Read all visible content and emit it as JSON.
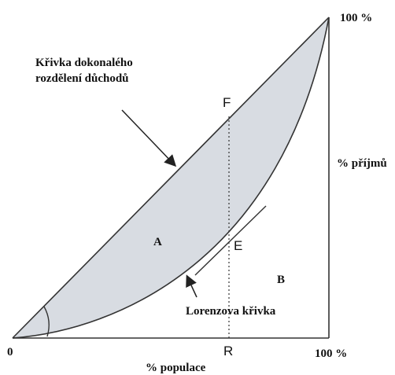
{
  "labels": {
    "top_right": "100 %",
    "diagonal": [
      "Křivka dokonalého",
      "rozdělení důchodů"
    ],
    "point_f": "F",
    "y_axis": "% příjmů",
    "area_a": "A",
    "point_e": "E",
    "area_b": "B",
    "curve": "Lorenzova křivka",
    "origin": "0",
    "point_r": "R",
    "bottom_right": "100 %",
    "x_axis": "% populace"
  }
}
